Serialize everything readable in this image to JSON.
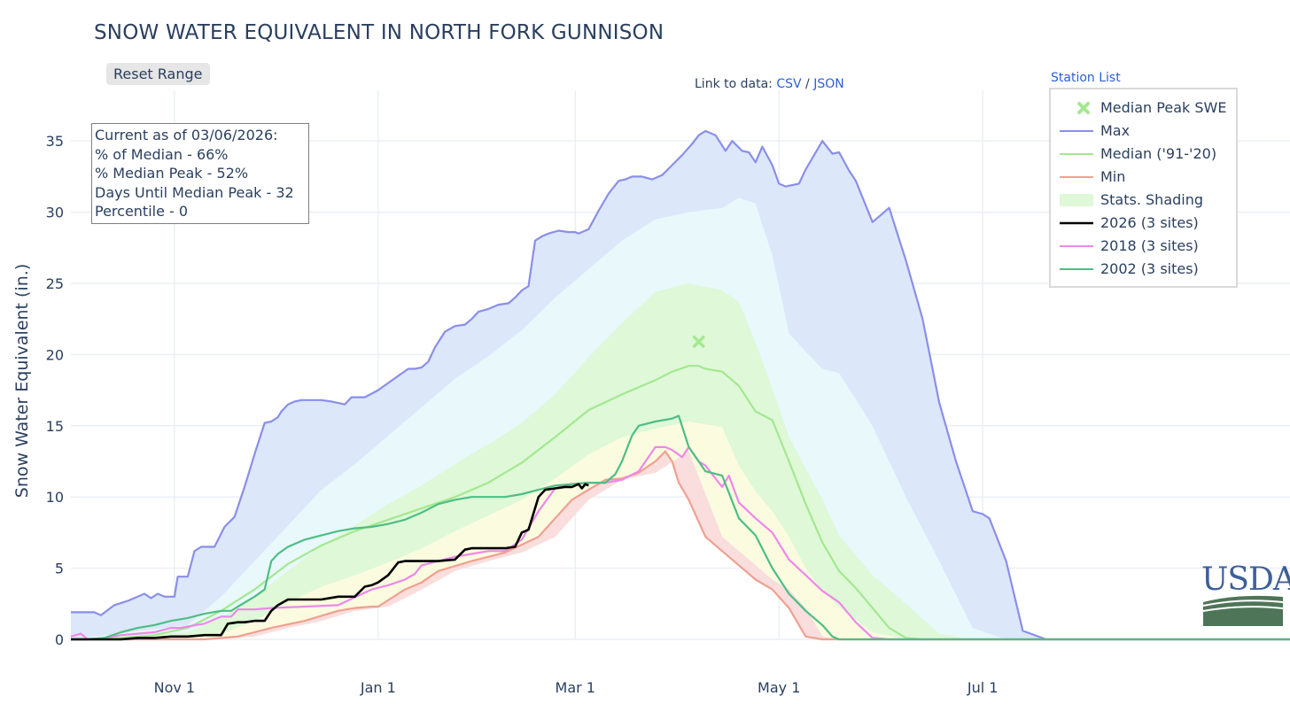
{
  "title": "SNOW WATER EQUIVALENT IN NORTH FORK GUNNISON",
  "reset_button": "Reset Range",
  "data_links": {
    "prefix": "Link to data:",
    "csv": "CSV",
    "separator": "/",
    "json": "JSON"
  },
  "station_list": "Station List",
  "info": {
    "current_as_of": "Current as of 03/06/2026:",
    "pct_median": "% of Median - 66%",
    "pct_median_peak": "% Median Peak - 52%",
    "days_until_peak": "Days Until Median Peak - 32",
    "percentile": "Percentile - 0"
  },
  "logo_text": "USDA",
  "colors": {
    "max": "#8a8fe8",
    "median": "#a4e890",
    "min": "#f0a090",
    "y2026": "#000000",
    "y2018": "#ee88e8",
    "y2002": "#4dbe84",
    "band_outer": "#dce7fa",
    "band_mid": "#e8f8fb",
    "band_green": "#def8d8",
    "band_yellow": "#fbfbdf",
    "band_red": "#f9dedd",
    "usda_blue": "#3d5f98",
    "usda_green": "#4e7558"
  },
  "chart_data": {
    "type": "line",
    "title": "SNOW WATER EQUIVALENT IN NORTH FORK GUNNISON",
    "xlabel": "",
    "ylabel": "Snow Water Equivalent (in.)",
    "x_unit": "days since Oct 1",
    "xlim": [
      0,
      365
    ],
    "ylim": [
      0,
      37
    ],
    "yticks": [
      0,
      5,
      10,
      15,
      20,
      25,
      30,
      35
    ],
    "xticks": [
      {
        "day": 31,
        "label": "Nov  1"
      },
      {
        "day": 92,
        "label": "Jan  1"
      },
      {
        "day": 151,
        "label": "Mar  1"
      },
      {
        "day": 212,
        "label": "May  1"
      },
      {
        "day": 273,
        "label": "Jul  1"
      }
    ],
    "legend": [
      "Median Peak SWE",
      "Max",
      "Median ('91-'20)",
      "Min",
      "Stats. Shading",
      "2026 (3 sites)",
      "2018 (3 sites)",
      "2002 (3 sites)"
    ],
    "legend_position": "top-right",
    "median_peak": {
      "x": 188,
      "y": 20.9,
      "name": "Median Peak SWE"
    },
    "series": [
      {
        "name": "Max",
        "x": [
          0,
          7,
          9,
          13,
          17,
          22,
          24,
          26,
          28,
          31,
          32,
          35,
          37,
          39,
          41,
          43,
          46,
          49,
          52,
          55,
          58,
          60,
          62,
          63,
          65,
          67,
          69,
          71,
          73,
          75,
          78,
          82,
          84,
          88,
          92,
          95,
          98,
          101,
          103,
          105,
          107,
          109,
          112,
          115,
          118,
          120,
          122,
          125,
          128,
          131,
          133,
          135,
          137,
          139,
          141,
          143,
          146,
          149,
          151,
          152,
          155,
          158,
          161,
          162,
          164,
          166,
          168,
          171,
          174,
          177,
          180,
          183,
          186,
          188,
          190,
          193,
          196,
          198,
          201,
          203,
          205,
          207,
          210,
          212,
          214,
          216,
          218,
          220,
          222,
          225,
          228,
          230,
          233,
          235,
          240,
          245,
          250,
          255,
          260,
          265,
          270,
          273,
          275,
          280,
          285,
          292,
          295,
          300,
          310,
          320,
          330,
          340,
          350,
          365
        ],
        "values": [
          1.9,
          1.9,
          1.7,
          2.4,
          2.7,
          3.2,
          2.9,
          3.2,
          3.0,
          3.0,
          4.4,
          4.4,
          6.2,
          6.5,
          6.5,
          6.5,
          7.9,
          8.6,
          10.7,
          13.0,
          15.2,
          15.3,
          15.6,
          16.0,
          16.5,
          16.7,
          16.8,
          16.8,
          16.8,
          16.8,
          16.7,
          16.5,
          17.0,
          17.0,
          17.5,
          18.0,
          18.5,
          19.0,
          19.0,
          19.1,
          19.5,
          20.5,
          21.6,
          22.0,
          22.1,
          22.5,
          23.0,
          23.2,
          23.5,
          23.6,
          24.0,
          24.5,
          24.8,
          28.0,
          28.3,
          28.5,
          28.7,
          28.6,
          28.6,
          28.5,
          28.8,
          30.1,
          31.3,
          31.6,
          32.2,
          32.3,
          32.5,
          32.5,
          32.3,
          32.6,
          33.3,
          34.0,
          34.8,
          35.4,
          35.7,
          35.4,
          34.3,
          35.0,
          34.3,
          34.2,
          33.5,
          34.6,
          33.3,
          32.0,
          31.8,
          31.9,
          32.0,
          33.0,
          33.8,
          35.0,
          34.1,
          34.2,
          32.9,
          32.2,
          29.3,
          30.3,
          26.6,
          22.5,
          16.6,
          12.5,
          9.0,
          8.8,
          8.5,
          5.5,
          0.6,
          0,
          0,
          0,
          0,
          0,
          0,
          0,
          0,
          0
        ]
      },
      {
        "name": "Median ('91-'20)",
        "x": [
          0,
          15,
          25,
          35,
          45,
          55,
          65,
          75,
          85,
          95,
          105,
          115,
          125,
          135,
          145,
          155,
          165,
          175,
          180,
          185,
          188,
          190,
          195,
          200,
          205,
          210,
          215,
          220,
          225,
          230,
          235,
          240,
          245,
          250,
          255,
          260,
          265,
          275,
          365
        ],
        "values": [
          0,
          0.1,
          0.3,
          0.8,
          2.0,
          3.5,
          5.3,
          6.6,
          7.6,
          8.4,
          9.2,
          10.0,
          11.0,
          12.4,
          14.2,
          16.1,
          17.2,
          18.2,
          18.8,
          19.2,
          19.2,
          19.0,
          18.8,
          17.8,
          16.0,
          15.4,
          12.5,
          9.5,
          6.8,
          4.8,
          3.6,
          2.2,
          0.8,
          0.1,
          0,
          0,
          0,
          0,
          0
        ]
      },
      {
        "name": "Min",
        "x": [
          0,
          35,
          40,
          50,
          60,
          70,
          80,
          85,
          90,
          92,
          100,
          105,
          110,
          120,
          130,
          140,
          145,
          150,
          155,
          160,
          165,
          170,
          175,
          178,
          180,
          182,
          185,
          190,
          195,
          200,
          205,
          210,
          215,
          220,
          225,
          230,
          235,
          240,
          250,
          365
        ],
        "values": [
          0,
          0,
          0,
          0.2,
          0.8,
          1.3,
          2.0,
          2.2,
          2.3,
          2.3,
          3.5,
          4.0,
          4.8,
          5.5,
          6.1,
          7.2,
          8.5,
          9.8,
          10.5,
          11.2,
          11.3,
          11.7,
          12.5,
          13.2,
          12.5,
          11.0,
          9.8,
          7.2,
          6.2,
          5.2,
          4.2,
          3.5,
          2.2,
          0.2,
          0,
          0,
          0,
          0,
          0,
          0
        ]
      },
      {
        "name": "2026 (3 sites)",
        "x": [
          0,
          10,
          15,
          20,
          25,
          30,
          35,
          40,
          45,
          47,
          50,
          52,
          55,
          58,
          60,
          62,
          65,
          70,
          75,
          80,
          85,
          88,
          90,
          92,
          95,
          98,
          100,
          102,
          105,
          110,
          115,
          118,
          120,
          125,
          130,
          133,
          135,
          137,
          140,
          142,
          145,
          148,
          150,
          152,
          153,
          154,
          155
        ],
        "values": [
          0,
          0,
          0,
          0.1,
          0.1,
          0.2,
          0.2,
          0.3,
          0.3,
          1.1,
          1.2,
          1.2,
          1.3,
          1.3,
          2.0,
          2.4,
          2.8,
          2.8,
          2.8,
          3.0,
          3.0,
          3.7,
          3.8,
          4.0,
          4.5,
          5.4,
          5.5,
          5.5,
          5.5,
          5.5,
          5.6,
          6.3,
          6.4,
          6.4,
          6.4,
          6.5,
          7.5,
          7.7,
          10.0,
          10.5,
          10.6,
          10.7,
          10.7,
          10.9,
          10.6,
          10.9,
          10.8
        ]
      },
      {
        "name": "2018 (3 sites)",
        "x": [
          0,
          3,
          5,
          10,
          15,
          20,
          25,
          30,
          33,
          35,
          40,
          45,
          48,
          50,
          55,
          60,
          70,
          80,
          90,
          95,
          100,
          103,
          105,
          110,
          115,
          120,
          125,
          130,
          135,
          140,
          145,
          150,
          155,
          160,
          165,
          170,
          175,
          178,
          180,
          183,
          185,
          188,
          190,
          195,
          197,
          200,
          205,
          210,
          215,
          220,
          225,
          230,
          235,
          240,
          245,
          365
        ],
        "values": [
          0.2,
          0.4,
          0,
          0.1,
          0.3,
          0.4,
          0.5,
          0.8,
          0.8,
          0.9,
          1.1,
          1.6,
          1.6,
          2.1,
          2.1,
          2.2,
          2.3,
          2.4,
          3.5,
          3.8,
          4.2,
          4.6,
          5.2,
          5.5,
          5.8,
          6.0,
          6.2,
          6.2,
          7.0,
          9.0,
          10.6,
          10.9,
          11.0,
          11.0,
          11.2,
          11.8,
          13.5,
          13.5,
          13.3,
          12.8,
          13.5,
          12.5,
          12.2,
          10.7,
          11.5,
          9.6,
          8.5,
          7.5,
          5.6,
          4.5,
          3.4,
          2.6,
          1.2,
          0.1,
          0,
          0
        ]
      },
      {
        "name": "2002 (3 sites)",
        "x": [
          0,
          5,
          10,
          15,
          20,
          25,
          30,
          35,
          40,
          45,
          48,
          50,
          55,
          58,
          60,
          62,
          65,
          70,
          75,
          80,
          85,
          90,
          95,
          100,
          105,
          110,
          115,
          120,
          125,
          130,
          135,
          140,
          145,
          150,
          155,
          160,
          163,
          165,
          168,
          170,
          175,
          180,
          182,
          185,
          190,
          195,
          200,
          205,
          210,
          215,
          220,
          225,
          228,
          230,
          235,
          240,
          365
        ],
        "values": [
          0,
          0,
          0.1,
          0.5,
          0.8,
          1.0,
          1.3,
          1.5,
          1.8,
          2.0,
          2.0,
          2.3,
          3.0,
          3.5,
          5.5,
          6.0,
          6.5,
          7.0,
          7.3,
          7.6,
          7.8,
          7.9,
          8.1,
          8.4,
          8.9,
          9.5,
          9.8,
          10.0,
          10.0,
          10.0,
          10.2,
          10.5,
          10.8,
          10.9,
          11.0,
          11.0,
          11.6,
          12.5,
          14.3,
          15.0,
          15.3,
          15.5,
          15.7,
          13.5,
          11.8,
          11.5,
          8.5,
          7.3,
          5.0,
          3.2,
          2.0,
          1.0,
          0.2,
          0,
          0,
          0,
          0
        ]
      }
    ],
    "shading": {
      "x": [
        0,
        35,
        45,
        55,
        65,
        75,
        85,
        95,
        105,
        115,
        125,
        135,
        145,
        155,
        165,
        175,
        185,
        195,
        200,
        205,
        210,
        215,
        220,
        225,
        230,
        240,
        250,
        260,
        270,
        280,
        290,
        365
      ],
      "p90": [
        0,
        1.0,
        3.0,
        5.5,
        8.0,
        10.5,
        12.3,
        14.3,
        16.3,
        18.3,
        19.9,
        21.7,
        24.0,
        26.0,
        28.0,
        29.5,
        30.0,
        30.3,
        31.0,
        30.6,
        27.0,
        21.5,
        20.2,
        19.0,
        18.7,
        15.0,
        10.0,
        5.5,
        0.8,
        0,
        0,
        0
      ],
      "p70": [
        0,
        0.5,
        1.5,
        3.0,
        4.8,
        6.6,
        8.0,
        9.5,
        10.8,
        12.3,
        13.7,
        15.2,
        17.2,
        19.8,
        22.2,
        24.4,
        25.0,
        24.5,
        23.7,
        20.8,
        17.6,
        14.2,
        12.0,
        9.8,
        7.3,
        4.5,
        2.5,
        0.4,
        0,
        0,
        0,
        0
      ],
      "p50": [
        0,
        0.1,
        0.8,
        2.0,
        3.5,
        5.3,
        6.6,
        7.6,
        8.4,
        9.2,
        10.0,
        11.0,
        12.4,
        14.2,
        16.1,
        17.2,
        18.2,
        19.2,
        18.8,
        16.0,
        15.4,
        12.5,
        9.5,
        6.8,
        4.8,
        2.2,
        0.1,
        0,
        0,
        0,
        0,
        0
      ],
      "p30": [
        0,
        0.1,
        0.4,
        1.3,
        2.6,
        3.7,
        4.5,
        5.4,
        6.4,
        7.6,
        8.7,
        9.8,
        11.3,
        13.0,
        14.2,
        14.8,
        15.3,
        14.9,
        12.2,
        10.4,
        9.0,
        7.2,
        5.0,
        3.4,
        2.3,
        0.5,
        0,
        0,
        0,
        0,
        0,
        0
      ],
      "p10": [
        0,
        0,
        0,
        0.2,
        0.8,
        1.3,
        2.0,
        2.3,
        3.5,
        4.8,
        5.5,
        6.1,
        7.2,
        9.8,
        11.2,
        11.7,
        13.2,
        7.2,
        6.2,
        5.2,
        4.2,
        3.5,
        2.2,
        0.2,
        0,
        0,
        0,
        0,
        0,
        0,
        0,
        0
      ]
    }
  }
}
